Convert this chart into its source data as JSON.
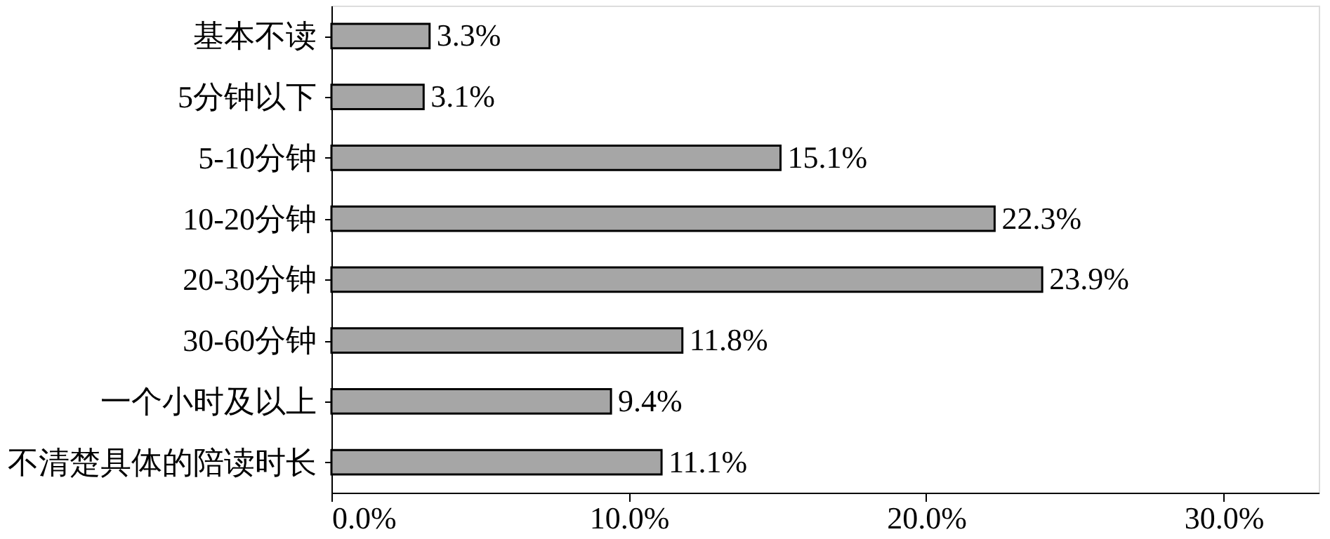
{
  "chart_data": {
    "type": "bar",
    "orientation": "horizontal",
    "categories": [
      "基本不读",
      "5分钟以下",
      "5-10分钟",
      "10-20分钟",
      "20-30分钟",
      "30-60分钟",
      "一个小时及以上",
      "不清楚具体的陪读时长"
    ],
    "values": [
      3.3,
      3.1,
      15.1,
      22.3,
      23.9,
      11.8,
      9.4,
      11.1
    ],
    "value_labels": [
      "3.3%",
      "3.1%",
      "15.1%",
      "22.3%",
      "23.9%",
      "11.8%",
      "9.4%",
      "11.1%"
    ],
    "color": "#a6a6a6",
    "xlim": [
      0,
      33.2
    ],
    "xticks": [
      {
        "value": 0,
        "label": "0.0%"
      },
      {
        "value": 10,
        "label": "10.0%"
      },
      {
        "value": 20,
        "label": "20.0%"
      },
      {
        "value": 30,
        "label": "30.0%"
      }
    ],
    "grid": false
  }
}
